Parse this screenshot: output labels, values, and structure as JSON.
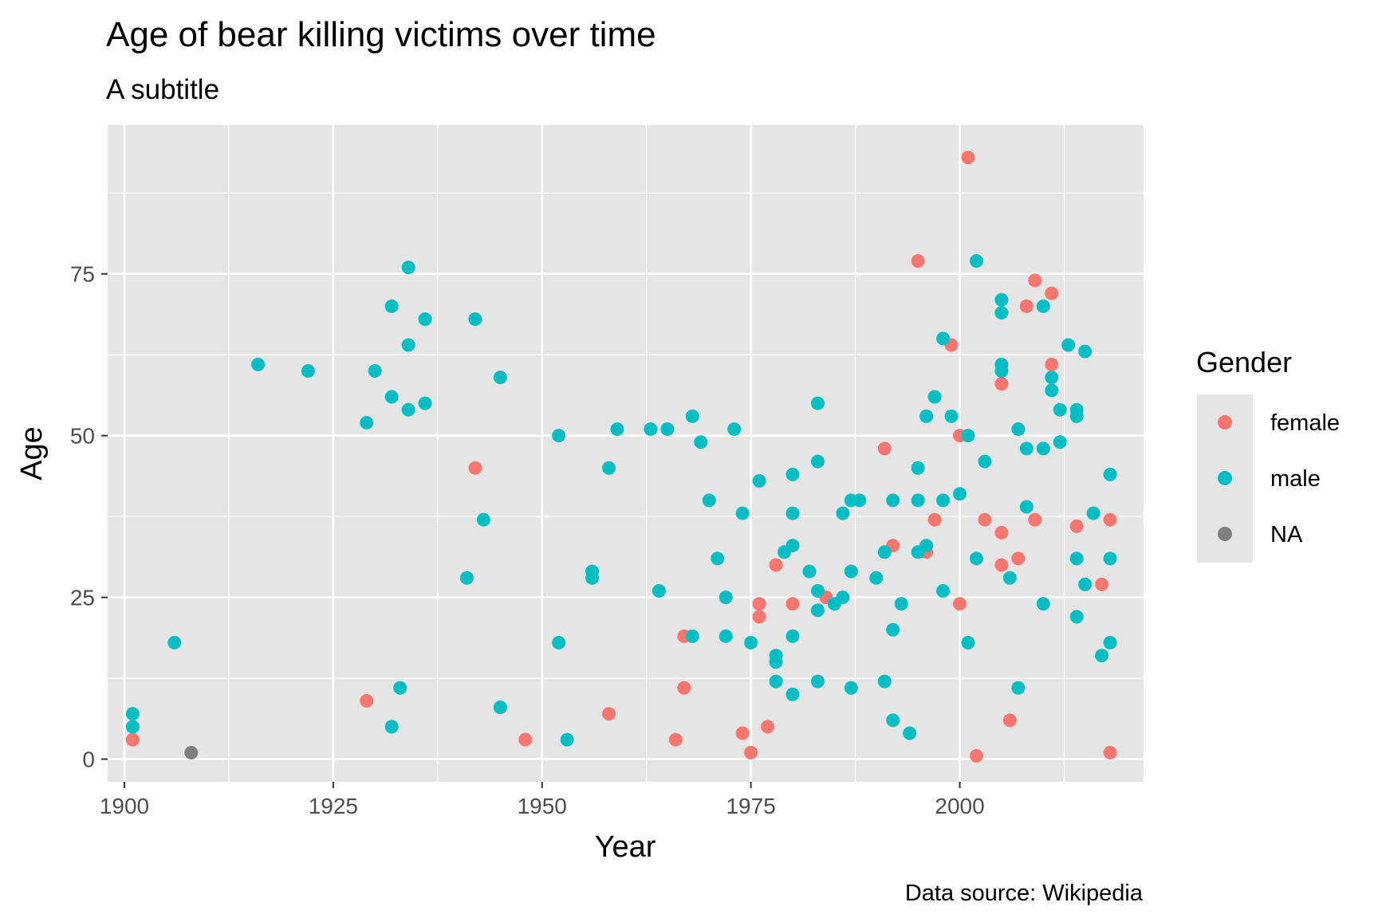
{
  "colors": {
    "panel_bg": "#e5e5e5",
    "grid": "#ffffff",
    "female": "#f8766d",
    "male": "#00bfc4",
    "NA": "#7f7f7f"
  },
  "chart_data": {
    "type": "scatter",
    "title": "Age of bear killing victims over time",
    "subtitle": "A subtitle",
    "xlabel": "Year",
    "ylabel": "Age",
    "caption": "Data source: Wikipedia",
    "xlim": [
      1898,
      2022
    ],
    "ylim": [
      -3.5,
      98
    ],
    "x_ticks": [
      1900,
      1925,
      1950,
      1975,
      2000
    ],
    "y_ticks": [
      0,
      25,
      50,
      75
    ],
    "grid": true,
    "legend": {
      "title": "Gender",
      "position": "right",
      "entries": [
        "female",
        "male",
        "NA"
      ]
    },
    "series": [
      {
        "name": "female",
        "points": [
          [
            1901,
            3
          ],
          [
            1929,
            9
          ],
          [
            1942,
            45
          ],
          [
            1948,
            3
          ],
          [
            1958,
            7
          ],
          [
            1966,
            3
          ],
          [
            1967,
            19
          ],
          [
            1967,
            11
          ],
          [
            1974,
            4
          ],
          [
            1975,
            1
          ],
          [
            1976,
            24
          ],
          [
            1976,
            22
          ],
          [
            1977,
            5
          ],
          [
            1978,
            30
          ],
          [
            1980,
            24
          ],
          [
            1984,
            25
          ],
          [
            1991,
            48
          ],
          [
            1992,
            33
          ],
          [
            1995,
            77
          ],
          [
            1996,
            32
          ],
          [
            1997,
            37
          ],
          [
            1999,
            64
          ],
          [
            2000,
            50
          ],
          [
            2000,
            24
          ],
          [
            2001,
            93
          ],
          [
            2002,
            0.5
          ],
          [
            2003,
            37
          ],
          [
            2005,
            58
          ],
          [
            2005,
            35
          ],
          [
            2005,
            30
          ],
          [
            2006,
            6
          ],
          [
            2007,
            31
          ],
          [
            2008,
            70
          ],
          [
            2009,
            74
          ],
          [
            2009,
            37
          ],
          [
            2011,
            72
          ],
          [
            2011,
            61
          ],
          [
            2014,
            36
          ],
          [
            2017,
            27
          ],
          [
            2018,
            37
          ],
          [
            2018,
            1
          ]
        ]
      },
      {
        "name": "male",
        "points": [
          [
            1901,
            7
          ],
          [
            1901,
            5
          ],
          [
            1906,
            18
          ],
          [
            1916,
            61
          ],
          [
            1922,
            60
          ],
          [
            1929,
            52
          ],
          [
            1930,
            60
          ],
          [
            1932,
            70
          ],
          [
            1932,
            56
          ],
          [
            1932,
            5
          ],
          [
            1933,
            11
          ],
          [
            1934,
            76
          ],
          [
            1934,
            64
          ],
          [
            1934,
            54
          ],
          [
            1936,
            68
          ],
          [
            1936,
            55
          ],
          [
            1941,
            28
          ],
          [
            1942,
            68
          ],
          [
            1943,
            37
          ],
          [
            1945,
            59
          ],
          [
            1945,
            8
          ],
          [
            1952,
            50
          ],
          [
            1952,
            18
          ],
          [
            1953,
            3
          ],
          [
            1956,
            29
          ],
          [
            1956,
            28
          ],
          [
            1958,
            45
          ],
          [
            1959,
            51
          ],
          [
            1963,
            51
          ],
          [
            1964,
            26
          ],
          [
            1965,
            51
          ],
          [
            1968,
            53
          ],
          [
            1968,
            19
          ],
          [
            1969,
            49
          ],
          [
            1970,
            40
          ],
          [
            1971,
            31
          ],
          [
            1972,
            25
          ],
          [
            1972,
            19
          ],
          [
            1973,
            51
          ],
          [
            1974,
            38
          ],
          [
            1975,
            18
          ],
          [
            1976,
            43
          ],
          [
            1978,
            16
          ],
          [
            1978,
            15
          ],
          [
            1978,
            12
          ],
          [
            1979,
            32
          ],
          [
            1980,
            44
          ],
          [
            1980,
            38
          ],
          [
            1980,
            33
          ],
          [
            1980,
            19
          ],
          [
            1980,
            10
          ],
          [
            1982,
            29
          ],
          [
            1983,
            55
          ],
          [
            1983,
            46
          ],
          [
            1983,
            26
          ],
          [
            1983,
            23
          ],
          [
            1983,
            12
          ],
          [
            1985,
            24
          ],
          [
            1986,
            38
          ],
          [
            1986,
            25
          ],
          [
            1987,
            40
          ],
          [
            1987,
            29
          ],
          [
            1987,
            11
          ],
          [
            1988,
            40
          ],
          [
            1990,
            28
          ],
          [
            1991,
            32
          ],
          [
            1991,
            12
          ],
          [
            1992,
            40
          ],
          [
            1992,
            20
          ],
          [
            1992,
            6
          ],
          [
            1993,
            24
          ],
          [
            1994,
            4
          ],
          [
            1995,
            45
          ],
          [
            1995,
            40
          ],
          [
            1995,
            32
          ],
          [
            1996,
            53
          ],
          [
            1996,
            33
          ],
          [
            1997,
            56
          ],
          [
            1998,
            65
          ],
          [
            1998,
            40
          ],
          [
            1998,
            26
          ],
          [
            1999,
            53
          ],
          [
            2000,
            41
          ],
          [
            2001,
            50
          ],
          [
            2001,
            18
          ],
          [
            2002,
            77
          ],
          [
            2002,
            31
          ],
          [
            2003,
            46
          ],
          [
            2005,
            71
          ],
          [
            2005,
            69
          ],
          [
            2005,
            61
          ],
          [
            2005,
            60
          ],
          [
            2006,
            28
          ],
          [
            2007,
            51
          ],
          [
            2007,
            11
          ],
          [
            2008,
            48
          ],
          [
            2008,
            39
          ],
          [
            2010,
            70
          ],
          [
            2010,
            48
          ],
          [
            2010,
            24
          ],
          [
            2011,
            59
          ],
          [
            2011,
            57
          ],
          [
            2012,
            54
          ],
          [
            2012,
            49
          ],
          [
            2013,
            64
          ],
          [
            2014,
            54
          ],
          [
            2014,
            53
          ],
          [
            2014,
            31
          ],
          [
            2014,
            22
          ],
          [
            2015,
            63
          ],
          [
            2015,
            27
          ],
          [
            2016,
            38
          ],
          [
            2017,
            16
          ],
          [
            2018,
            44
          ],
          [
            2018,
            31
          ],
          [
            2018,
            18
          ]
        ]
      },
      {
        "name": "NA",
        "points": [
          [
            1908,
            1
          ]
        ]
      }
    ]
  }
}
